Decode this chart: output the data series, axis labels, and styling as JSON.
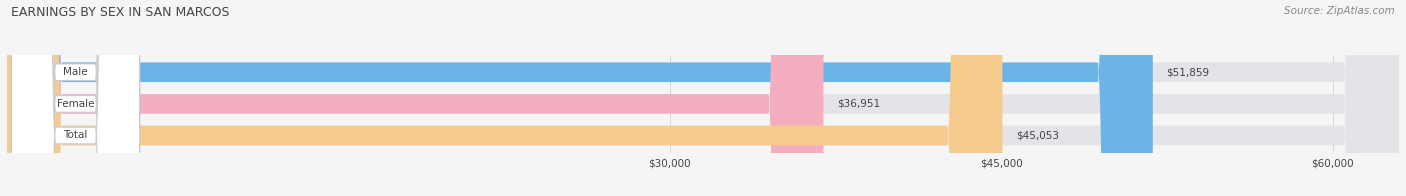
{
  "title": "EARNINGS BY SEX IN SAN MARCOS",
  "source": "Source: ZipAtlas.com",
  "categories": [
    "Male",
    "Female",
    "Total"
  ],
  "values": [
    51859,
    36951,
    45053
  ],
  "bar_colors": [
    "#6ab4e8",
    "#f5adc0",
    "#f5cb8e"
  ],
  "bar_bg_color": "#e4e4e8",
  "label_bg_color": "#ffffff",
  "label_border_color": "#cccccc",
  "xmin": 0,
  "xmax": 63000,
  "xlim_min": 0,
  "xlim_max": 63000,
  "xticks": [
    30000,
    45000,
    60000
  ],
  "xtick_labels": [
    "$30,000",
    "$45,000",
    "$60,000"
  ],
  "value_labels": [
    "$51,859",
    "$36,951",
    "$45,053"
  ],
  "title_fontsize": 9,
  "source_fontsize": 7.5,
  "tick_fontsize": 7.5,
  "bar_label_fontsize": 7.5,
  "value_label_fontsize": 7.5,
  "bar_height": 0.62,
  "background_color": "#f5f5f5",
  "grid_color": "#d8d8d8",
  "text_color": "#444444"
}
